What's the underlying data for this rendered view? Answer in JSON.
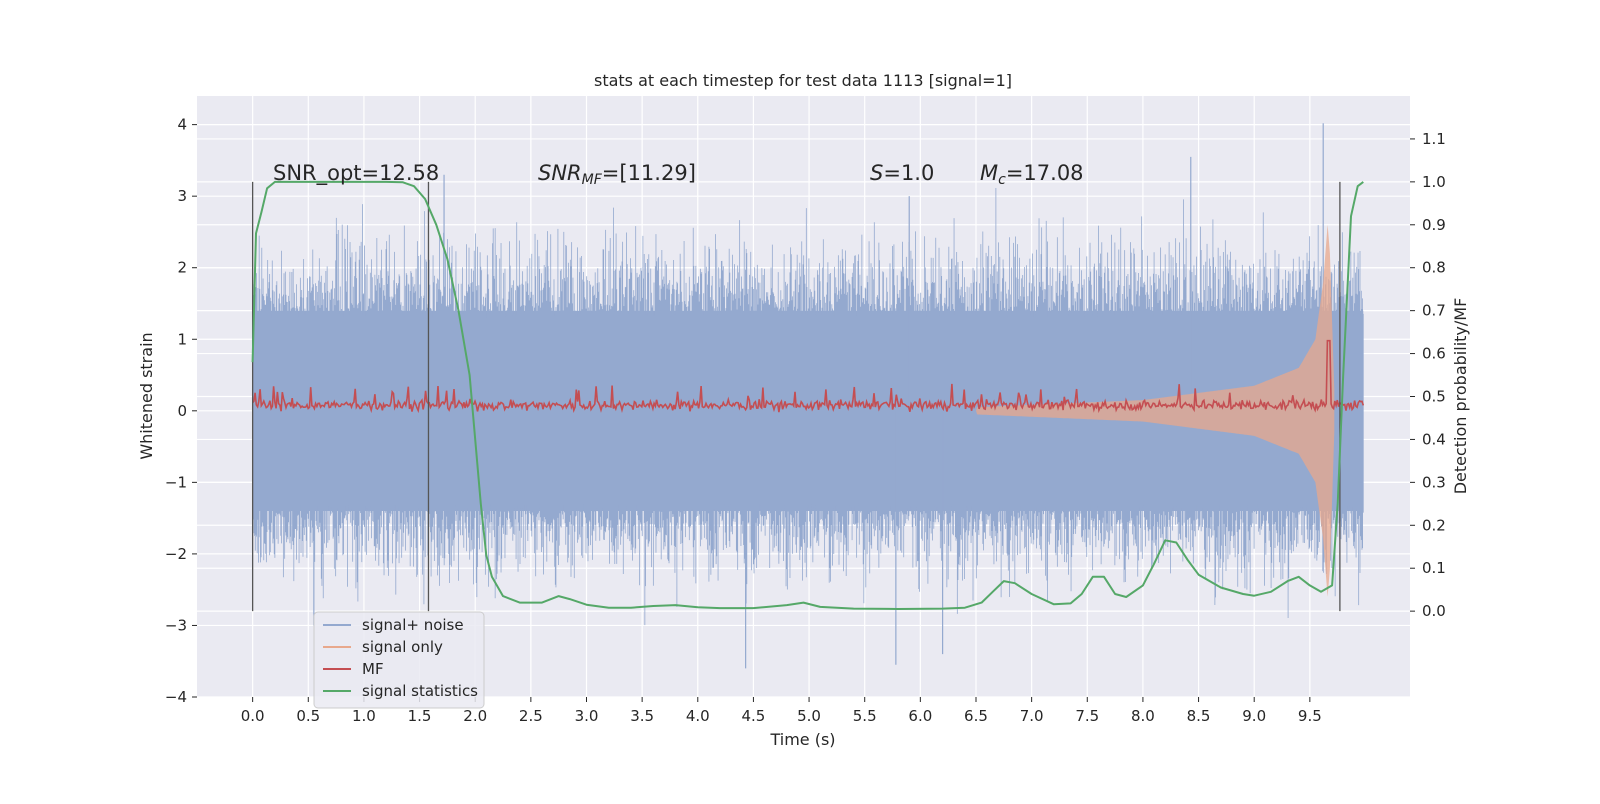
{
  "chart_data": {
    "type": "line",
    "title": "stats at each timestep for test data 1113 [signal=1]",
    "xlabel": "Time (s)",
    "ylabel_left": "Whitened strain",
    "ylabel_right": "Detection probability/MF",
    "xlim": [
      -0.5,
      10.4
    ],
    "ylim_left": [
      -4,
      4.4
    ],
    "ylim_right": [
      -0.2,
      1.2
    ],
    "x_ticks": [
      "0.0",
      "0.5",
      "1.0",
      "1.5",
      "2.0",
      "2.5",
      "3.0",
      "3.5",
      "4.0",
      "4.5",
      "5.0",
      "5.5",
      "6.0",
      "6.5",
      "7.0",
      "7.5",
      "8.0",
      "8.5",
      "9.0",
      "9.5"
    ],
    "y_ticks_left": [
      "−4",
      "−3",
      "−2",
      "−1",
      "0",
      "1",
      "2",
      "3",
      "4"
    ],
    "y_ticks_right": [
      "0.0",
      "0.1",
      "0.2",
      "0.3",
      "0.4",
      "0.5",
      "0.6",
      "0.7",
      "0.8",
      "0.9",
      "1.0",
      "1.1"
    ],
    "grid": true,
    "legend_position": "lower-left",
    "annotations": {
      "snr_opt": "SNR_opt=12.58",
      "snr_mf_sym": "SNR",
      "snr_mf_sub": "MF",
      "snr_mf_rest": "=[11.29]",
      "s_sym": "S",
      "s_rest": "=1.0",
      "mc_sym": "M",
      "mc_sub": "c",
      "mc_rest": "=17.08"
    },
    "vertical_markers": [
      0.0,
      1.58,
      9.77
    ],
    "series": [
      {
        "name": "signal+ noise",
        "color": "#94a9cf",
        "axis": "left",
        "style": "noise band, spikes to about -3.6 and +4.0",
        "typical_range": [
          -1.4,
          1.4
        ]
      },
      {
        "name": "signal only",
        "color": "#e8a88c",
        "axis": "left",
        "style": "chirp envelope",
        "envelope": [
          [
            6.5,
            0.05
          ],
          [
            8.0,
            0.15
          ],
          [
            9.0,
            0.35
          ],
          [
            9.4,
            0.6
          ],
          [
            9.55,
            1.0
          ],
          [
            9.62,
            1.8
          ],
          [
            9.66,
            2.6
          ],
          [
            9.68,
            2.2
          ],
          [
            9.72,
            0.3
          ]
        ]
      },
      {
        "name": "MF",
        "color": "#c44e52",
        "axis": "right",
        "baseline": 0.48,
        "peak": [
          9.67,
          0.63
        ]
      },
      {
        "name": "signal statistics",
        "color": "#55a868",
        "axis": "right",
        "x": [
          0.0,
          0.03,
          0.08,
          0.13,
          0.2,
          0.4,
          0.8,
          1.2,
          1.35,
          1.45,
          1.55,
          1.65,
          1.75,
          1.85,
          1.95,
          2.0,
          2.05,
          2.1,
          2.15,
          2.25,
          2.4,
          2.6,
          2.75,
          2.85,
          3.0,
          3.2,
          3.4,
          3.6,
          3.8,
          4.0,
          4.2,
          4.5,
          4.8,
          4.95,
          5.1,
          5.4,
          5.8,
          6.2,
          6.4,
          6.55,
          6.65,
          6.75,
          6.85,
          7.0,
          7.2,
          7.35,
          7.45,
          7.55,
          7.65,
          7.75,
          7.85,
          8.0,
          8.1,
          8.2,
          8.3,
          8.4,
          8.5,
          8.7,
          8.9,
          9.0,
          9.15,
          9.3,
          9.4,
          9.5,
          9.6,
          9.7,
          9.75,
          9.8,
          9.87,
          9.93,
          9.98
        ],
        "values": [
          0.58,
          0.88,
          0.93,
          0.985,
          1.0,
          1.0,
          1.0,
          1.0,
          0.999,
          0.99,
          0.96,
          0.9,
          0.82,
          0.7,
          0.55,
          0.4,
          0.25,
          0.13,
          0.08,
          0.035,
          0.02,
          0.02,
          0.035,
          0.028,
          0.015,
          0.008,
          0.008,
          0.012,
          0.014,
          0.009,
          0.007,
          0.007,
          0.014,
          0.02,
          0.01,
          0.006,
          0.005,
          0.006,
          0.008,
          0.02,
          0.045,
          0.07,
          0.065,
          0.04,
          0.016,
          0.018,
          0.04,
          0.08,
          0.08,
          0.04,
          0.033,
          0.06,
          0.11,
          0.165,
          0.16,
          0.12,
          0.085,
          0.055,
          0.04,
          0.036,
          0.045,
          0.07,
          0.08,
          0.06,
          0.045,
          0.06,
          0.25,
          0.55,
          0.92,
          0.99,
          1.0
        ]
      }
    ]
  }
}
